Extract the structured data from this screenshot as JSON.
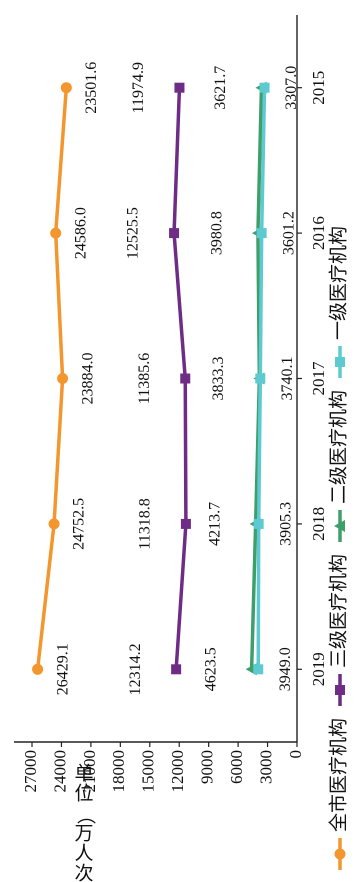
{
  "chart_data": {
    "type": "line",
    "orientation": "rotated 90° clockwise",
    "y_unit_label": "单位（万人次）",
    "ylim": [
      0,
      27000
    ],
    "y_ticks": [
      0,
      3000,
      6000,
      9000,
      12000,
      15000,
      18000,
      21000,
      24000,
      27000
    ],
    "categories": [
      "2015",
      "2016",
      "2017",
      "2018",
      "2019"
    ],
    "grid": false,
    "legend_position": "bottom",
    "series": [
      {
        "name": "全市医疗机构",
        "marker": "circle",
        "color": "#F4962E",
        "values": [
          23501.6,
          24586.0,
          23884.0,
          24752.5,
          26429.1
        ],
        "labels": [
          "23501.6",
          "24586.0",
          "23884.0",
          "24752.5",
          "26429.1"
        ]
      },
      {
        "name": "三级医疗机构",
        "marker": "square",
        "color": "#6E2C86",
        "values": [
          11974.9,
          12525.5,
          11385.6,
          11318.8,
          12314.2
        ],
        "labels": [
          "11974.9",
          "12525.5",
          "11385.6",
          "11318.8",
          "12314.2"
        ]
      },
      {
        "name": "二级医疗机构",
        "marker": "triangle",
        "color": "#3E9F6B",
        "values": [
          3621.7,
          3980.8,
          3833.3,
          4213.7,
          4623.5
        ],
        "labels": [
          "3621.7",
          "3980.8",
          "3833.3",
          "4213.7",
          "4623.5"
        ]
      },
      {
        "name": "一级医疗机构",
        "marker": "square",
        "color": "#5CCAD0",
        "values": [
          3307.0,
          3601.2,
          3740.1,
          3905.3,
          3949.0
        ],
        "labels": [
          "3307.0",
          "3601.2",
          "3740.1",
          "3905.3",
          "3949.0"
        ]
      }
    ]
  }
}
